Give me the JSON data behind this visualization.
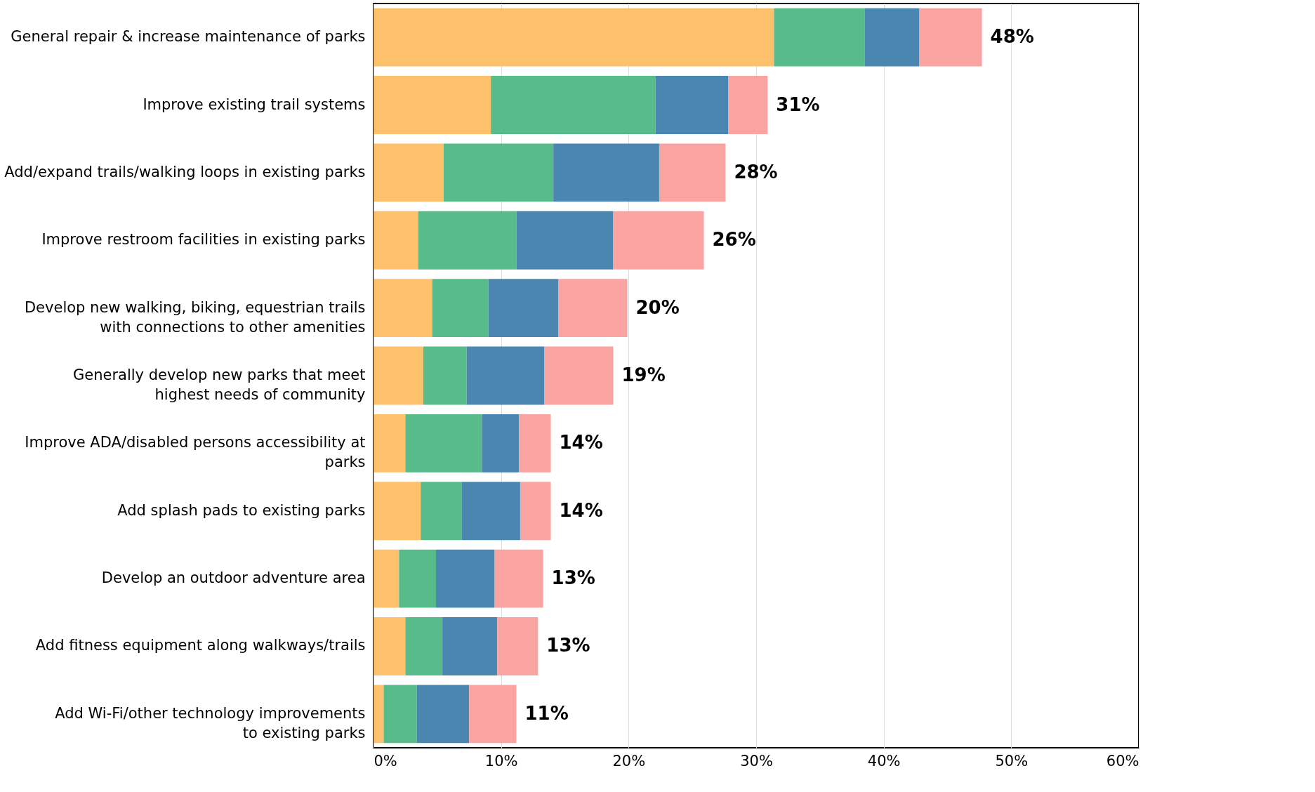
{
  "chart_data": {
    "type": "bar",
    "orientation": "horizontal",
    "stacked": true,
    "categories": [
      "General repair & increase maintenance of parks",
      "Improve existing trail systems",
      "Add/expand trails/walking loops in existing parks",
      "Improve restroom facilities in existing parks",
      "Develop new walking, biking, equestrian trails\nwith connections to other amenities",
      "Generally develop new parks that meet\nhighest needs of community",
      "Improve ADA/disabled persons accessibility at\nparks",
      "Add splash pads to existing parks",
      "Develop an outdoor adventure area",
      "Add fitness equipment along walkways/trails",
      "Add Wi-Fi/other technology improvements\nto existing parks"
    ],
    "series": [
      {
        "color": "#fdc16c",
        "values": [
          31.4,
          9.2,
          5.5,
          3.5,
          4.6,
          3.9,
          2.5,
          3.7,
          2.0,
          2.5,
          0.8
        ]
      },
      {
        "color": "#57bb8a",
        "values": [
          7.1,
          12.9,
          8.6,
          7.7,
          4.4,
          3.4,
          6.0,
          3.2,
          2.9,
          2.9,
          2.6
        ]
      },
      {
        "color": "#4a86b0",
        "values": [
          4.3,
          5.7,
          8.3,
          7.6,
          5.5,
          6.1,
          2.9,
          4.6,
          4.6,
          4.3,
          4.1
        ]
      },
      {
        "color": "#f9a4a1",
        "values": [
          4.9,
          3.1,
          5.2,
          7.1,
          5.4,
          5.4,
          2.5,
          2.4,
          3.8,
          3.2,
          3.7
        ]
      }
    ],
    "totals": [
      "48%",
      "31%",
      "28%",
      "26%",
      "20%",
      "19%",
      "14%",
      "14%",
      "13%",
      "13%",
      "11%"
    ],
    "xlim": [
      0,
      60
    ],
    "xticks": [
      {
        "value": 0,
        "label": "0%"
      },
      {
        "value": 10,
        "label": "10%"
      },
      {
        "value": 20,
        "label": "20%"
      },
      {
        "value": 30,
        "label": "30%"
      },
      {
        "value": 40,
        "label": "40%"
      },
      {
        "value": 50,
        "label": "50%"
      },
      {
        "value": 60,
        "label": "60%"
      }
    ],
    "grid": "x",
    "legend": false
  }
}
